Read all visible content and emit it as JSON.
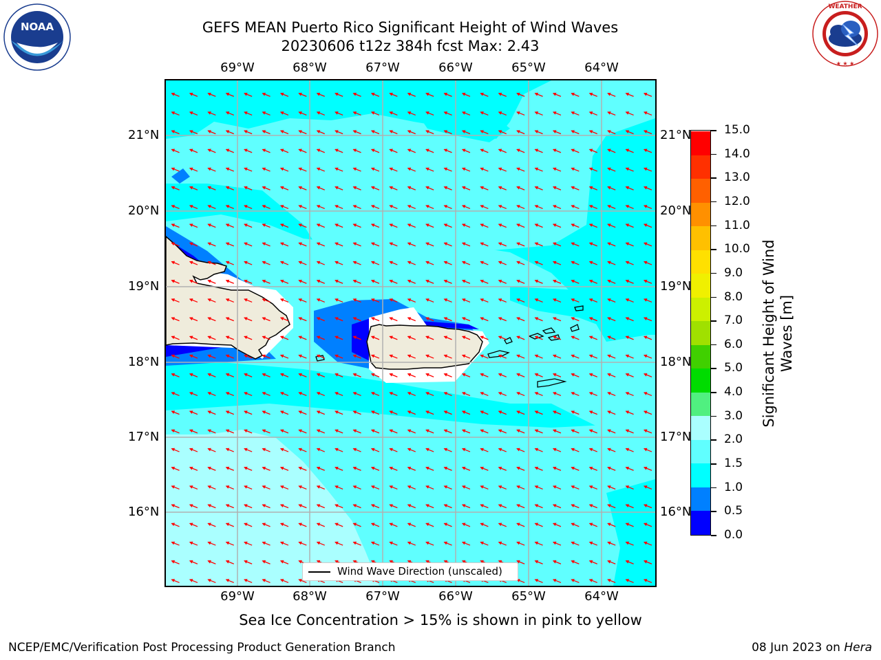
{
  "title": {
    "line1": "GEFS MEAN Puerto Rico Significant Height of Wind Waves",
    "line2": "20230606 t12z 384h fcst   Max: 2.43"
  },
  "logos": {
    "left": {
      "text": "NOAA",
      "ring_text": "NATIONAL OCEANIC AND ATMOSPHERIC ADMINISTRATION · U.S. DEPARTMENT OF COMMERCE"
    },
    "right": {
      "ring_text": "NATIONAL WEATHER SERVICE"
    }
  },
  "map": {
    "lon_labels": [
      "69°W",
      "68°W",
      "67°W",
      "66°W",
      "65°W",
      "64°W"
    ],
    "lat_labels": [
      "21°N",
      "20°N",
      "19°N",
      "18°N",
      "17°N",
      "16°N"
    ],
    "land_color": "#efecdc",
    "coast_color": "#000000",
    "arrow_color": "#ff0000",
    "grid_color": "#b0b0b0"
  },
  "colorbar": {
    "title": "Significant Height of Wind Waves [m]",
    "levels": [
      "0.0",
      "0.5",
      "1.0",
      "1.5",
      "2.0",
      "3.0",
      "4.0",
      "5.0",
      "6.0",
      "7.0",
      "8.0",
      "9.0",
      "10.0",
      "11.0",
      "12.0",
      "13.0",
      "14.0",
      "15.0"
    ],
    "colors": [
      "#0000ff",
      "#0080ff",
      "#00ffff",
      "#60ffff",
      "#aaffff",
      "#50f080",
      "#00dc00",
      "#40d000",
      "#a0e000",
      "#ccf000",
      "#f0f000",
      "#ffe000",
      "#ffc000",
      "#ff9000",
      "#ff6000",
      "#ff3000",
      "#ff0000"
    ]
  },
  "legend": {
    "label": "Wind Wave Direction (unscaled)"
  },
  "notes": {
    "ice": "Sea Ice Concentration > 15% is shown in pink to yellow",
    "footer_left": "NCEP/EMC/Verification Post Processing Product Generation Branch",
    "footer_date": "08 Jun 2023 on",
    "footer_host": "Hera"
  }
}
